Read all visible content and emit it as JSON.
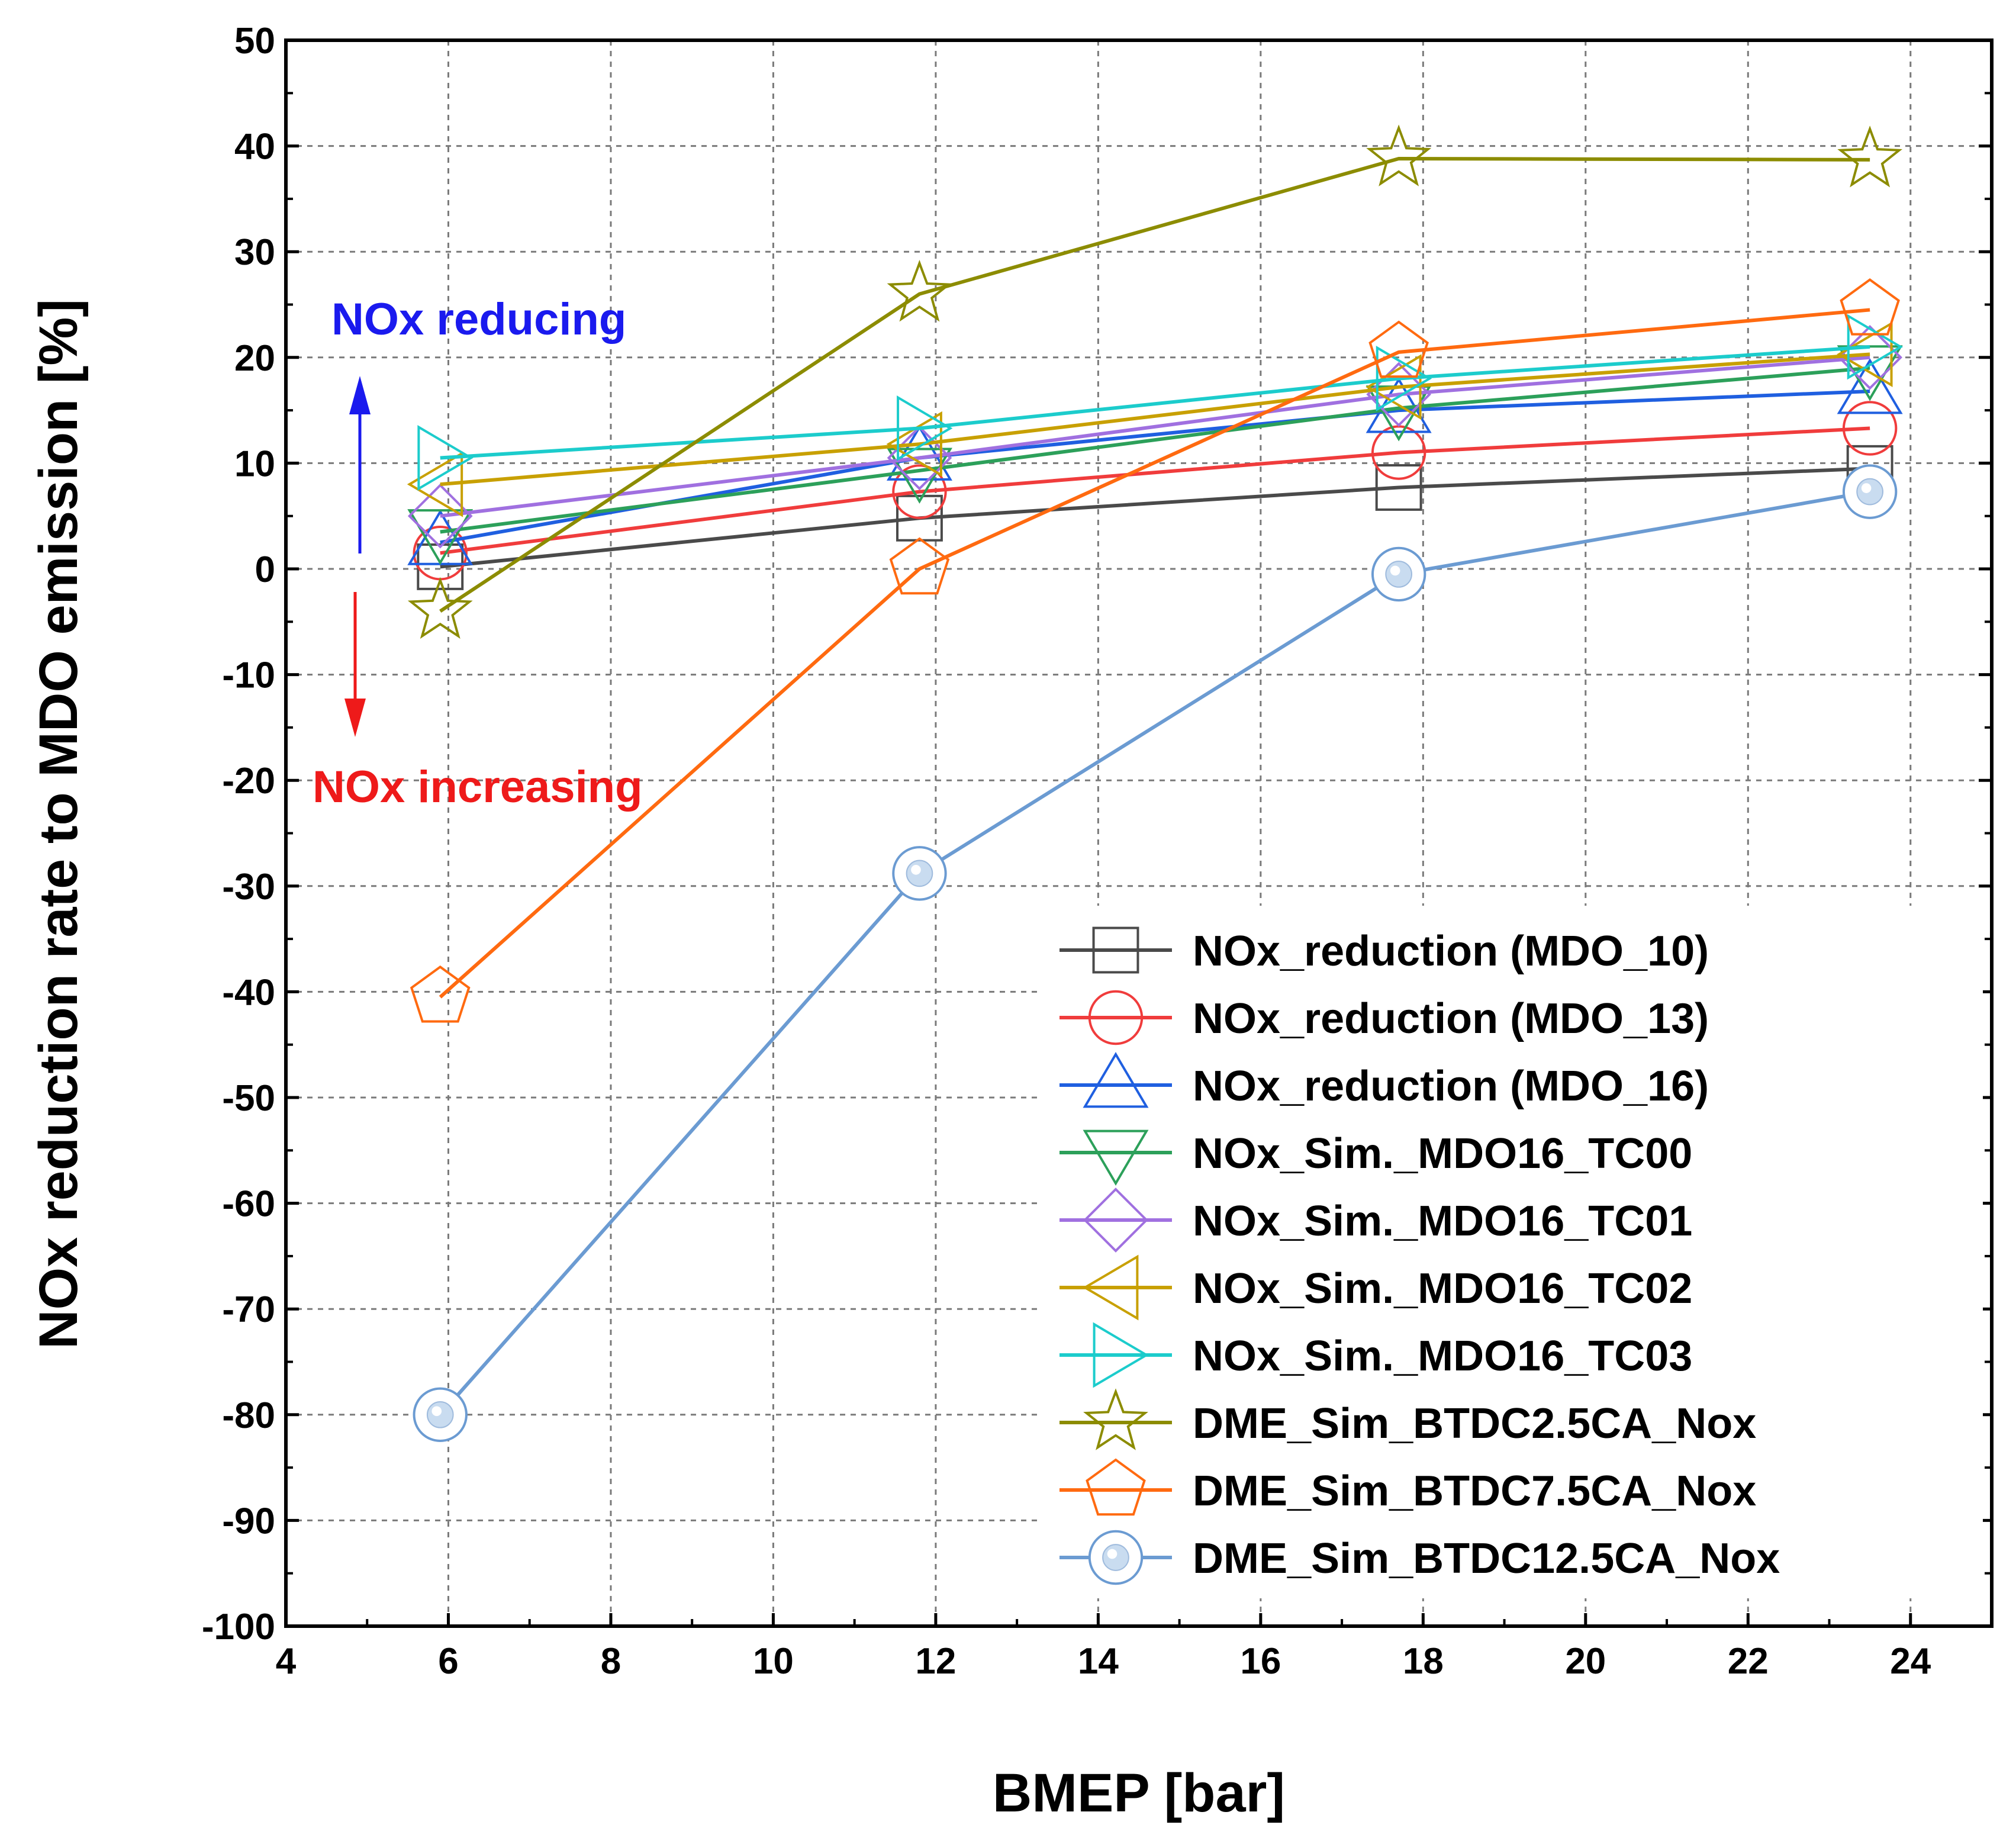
{
  "chart_data": {
    "type": "line",
    "title": "",
    "xlabel": "BMEP [bar]",
    "ylabel": "NOx reduction rate to MDO emission [%]",
    "xlim": [
      4,
      25
    ],
    "ylim": [
      -100,
      50
    ],
    "xticks": [
      "4",
      "6",
      "8",
      "10",
      "12",
      "14",
      "16",
      "18",
      "20",
      "22",
      "24"
    ],
    "yticks": [
      "50",
      "40",
      "30",
      "20",
      "10",
      "0",
      "-10",
      "-20",
      "-30",
      "-40",
      "-50",
      "-60",
      "-70",
      "-80",
      "-90",
      "-100"
    ],
    "grid": true,
    "legend_position": "bottom-right",
    "annotations": {
      "reducing": "NOx reducing",
      "increasing": "NOx increasing"
    },
    "series": [
      {
        "name": "NOx_reduction (MDO_10)",
        "marker": "square",
        "color": "#4a4a4a",
        "x": [
          5.9,
          11.8,
          17.7,
          23.5
        ],
        "y": [
          0.2,
          4.8,
          7.7,
          9.5
        ]
      },
      {
        "name": "NOx_reduction (MDO_13)",
        "marker": "circle",
        "color": "#f03c3c",
        "x": [
          5.9,
          11.8,
          17.7,
          23.5
        ],
        "y": [
          1.5,
          7.3,
          11.0,
          13.3
        ]
      },
      {
        "name": "NOx_reduction (MDO_16)",
        "marker": "triangle-up",
        "color": "#1f5fe0",
        "x": [
          5.9,
          11.8,
          17.7,
          23.5
        ],
        "y": [
          2.5,
          10.5,
          15.0,
          16.8
        ]
      },
      {
        "name": "NOx_Sim._MDO16_TC00",
        "marker": "triangle-down",
        "color": "#2ca05a",
        "x": [
          5.9,
          11.8,
          17.7,
          23.5
        ],
        "y": [
          3.5,
          9.3,
          15.2,
          19.0
        ]
      },
      {
        "name": "NOx_Sim._MDO16_TC01",
        "marker": "diamond",
        "color": "#a070e0",
        "x": [
          5.9,
          11.8,
          17.7,
          23.5
        ],
        "y": [
          5.0,
          10.5,
          16.5,
          20.0
        ]
      },
      {
        "name": "NOx_Sim._MDO16_TC02",
        "marker": "triangle-left",
        "color": "#c8a000",
        "x": [
          5.9,
          11.8,
          17.7,
          23.5
        ],
        "y": [
          8.0,
          11.8,
          17.2,
          20.3
        ]
      },
      {
        "name": "NOx_Sim._MDO16_TC03",
        "marker": "triangle-right",
        "color": "#1ccccc",
        "x": [
          5.9,
          11.8,
          17.7,
          23.5
        ],
        "y": [
          10.5,
          13.3,
          18.0,
          21.0
        ]
      },
      {
        "name": "DME_Sim_BTDC2.5CA_Nox",
        "marker": "star",
        "color": "#8c8c00",
        "x": [
          5.9,
          11.8,
          17.7,
          23.5
        ],
        "y": [
          -4.0,
          26.0,
          38.8,
          38.7
        ]
      },
      {
        "name": "DME_Sim_BTDC7.5CA_Nox",
        "marker": "pentagon",
        "color": "#ff6a10",
        "x": [
          5.9,
          11.8,
          17.7,
          23.5
        ],
        "y": [
          -40.5,
          0.0,
          20.5,
          24.5
        ]
      },
      {
        "name": "DME_Sim_BTDC12.5CA_Nox",
        "marker": "sphere",
        "color": "#6b9bd2",
        "x": [
          5.9,
          11.8,
          17.7,
          23.5
        ],
        "y": [
          -80.0,
          -28.8,
          -0.5,
          7.3
        ]
      }
    ]
  }
}
